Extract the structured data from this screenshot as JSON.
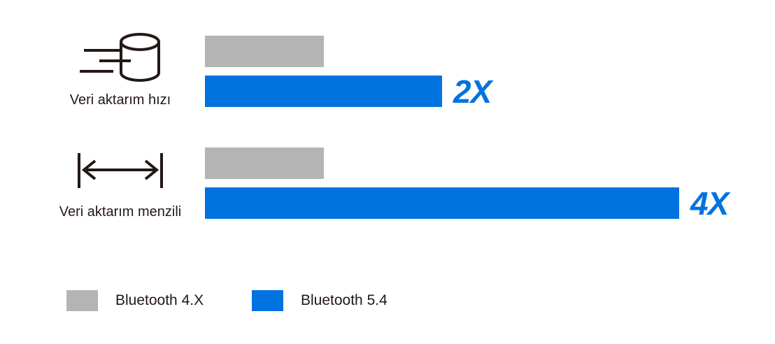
{
  "chart_data": {
    "type": "bar",
    "orientation": "horizontal",
    "categories": [
      "Veri aktarım hızı",
      "Veri aktarım menzili"
    ],
    "category_icons": [
      "database-speed-icon",
      "range-arrow-icon"
    ],
    "series": [
      {
        "name": "Bluetooth 4.X",
        "values": [
          1,
          1
        ],
        "color": "#b5b4b5"
      },
      {
        "name": "Bluetooth 5.4",
        "values": [
          2,
          4
        ],
        "color": "#0073e0"
      }
    ],
    "data_labels": [
      "2X",
      "4X"
    ],
    "xlim": [
      0,
      4
    ],
    "grid": false,
    "legend_position": "bottom-left"
  }
}
